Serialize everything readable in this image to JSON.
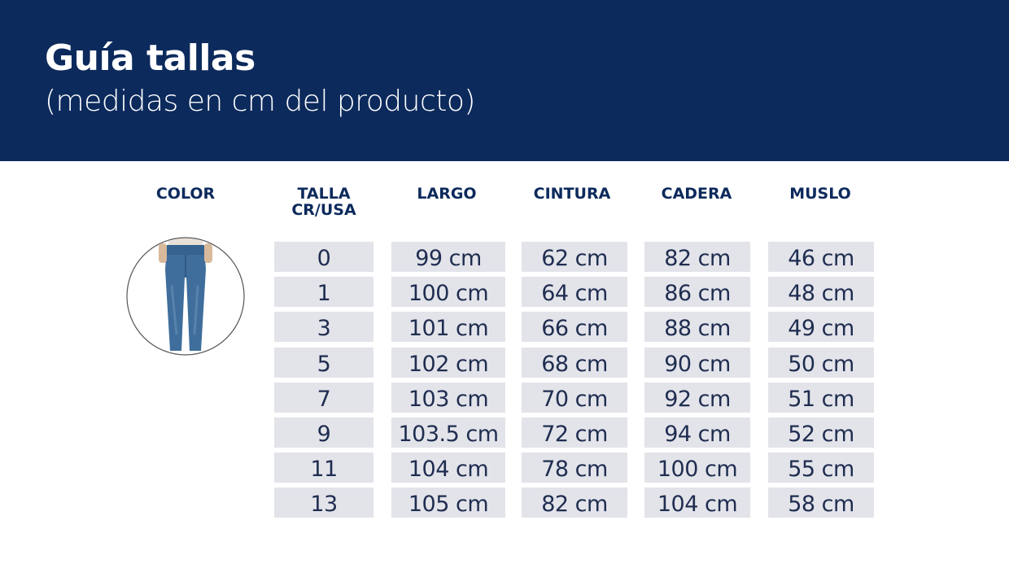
{
  "header": {
    "title": "Guía tallas",
    "subtitle": "(medidas en cm del producto)"
  },
  "table": {
    "columns": [
      "COLOR",
      "TALLA\nCR/USA",
      "LARGO",
      "CINTURA",
      "CADERA",
      "MUSLO"
    ],
    "rows": [
      [
        "0",
        "99 cm",
        "62 cm",
        "82 cm",
        "46 cm"
      ],
      [
        "1",
        "100 cm",
        "64 cm",
        "86 cm",
        "48 cm"
      ],
      [
        "3",
        "101 cm",
        "66 cm",
        "88 cm",
        "49 cm"
      ],
      [
        "5",
        "102 cm",
        "68 cm",
        "90 cm",
        "50 cm"
      ],
      [
        "7",
        "103 cm",
        "70 cm",
        "92 cm",
        "51 cm"
      ],
      [
        "9",
        "103.5 cm",
        "72 cm",
        "94 cm",
        "52 cm"
      ],
      [
        "11",
        "104 cm",
        "78 cm",
        "100 cm",
        "55 cm"
      ],
      [
        "13",
        "105 cm",
        "82 cm",
        "104 cm",
        "58 cm"
      ]
    ]
  }
}
